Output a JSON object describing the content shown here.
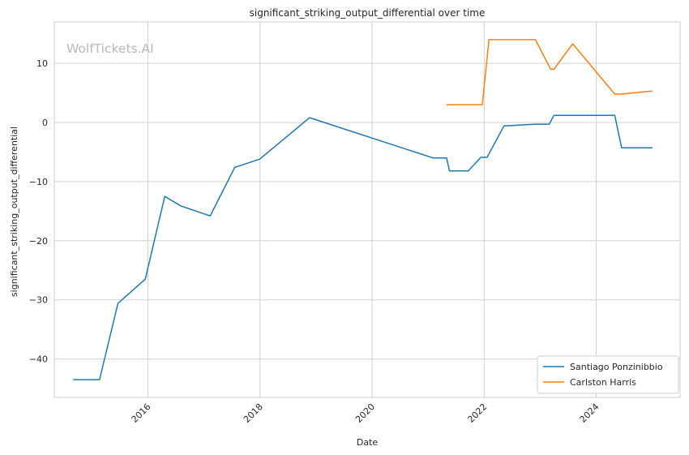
{
  "chart_data": {
    "type": "line",
    "title": "significant_striking_output_differential over time",
    "xlabel": "Date",
    "ylabel": "significant_striking_output_differential",
    "watermark": "WolfTickets.AI",
    "grid": true,
    "legend_position": "lower-right",
    "xlim": [
      "2014-05-01",
      "2025-07-01"
    ],
    "ylim": [
      -46.5,
      17
    ],
    "x_ticks": [
      "2016",
      "2018",
      "2020",
      "2022",
      "2024"
    ],
    "y_ticks": [
      -40,
      -30,
      -20,
      -10,
      0,
      10
    ],
    "y_tick_labels": [
      "−40",
      "−30",
      "−20",
      "−10",
      "0",
      "10"
    ],
    "series": [
      {
        "name": "Santiago Ponzinibbio",
        "color": "#1f77b4",
        "points": [
          {
            "x": "2014-09-01",
            "y": -43.5
          },
          {
            "x": "2015-02-20",
            "y": -43.5
          },
          {
            "x": "2015-06-20",
            "y": -30.6
          },
          {
            "x": "2015-12-15",
            "y": -26.5
          },
          {
            "x": "2016-04-20",
            "y": -12.5
          },
          {
            "x": "2016-08-01",
            "y": -14.1
          },
          {
            "x": "2017-02-10",
            "y": -15.8
          },
          {
            "x": "2017-07-20",
            "y": -7.6
          },
          {
            "x": "2017-12-30",
            "y": -6.2
          },
          {
            "x": "2018-11-20",
            "y": 0.8
          },
          {
            "x": "2021-02-01",
            "y": -6.0
          },
          {
            "x": "2021-05-01",
            "y": -6.0
          },
          {
            "x": "2021-05-20",
            "y": -8.2
          },
          {
            "x": "2021-09-20",
            "y": -8.2
          },
          {
            "x": "2021-12-10",
            "y": -5.9
          },
          {
            "x": "2022-01-20",
            "y": -5.9
          },
          {
            "x": "2022-05-10",
            "y": -0.6
          },
          {
            "x": "2022-12-01",
            "y": -0.3
          },
          {
            "x": "2023-03-01",
            "y": -0.3
          },
          {
            "x": "2023-04-01",
            "y": 1.2
          },
          {
            "x": "2024-05-01",
            "y": 1.2
          },
          {
            "x": "2024-06-15",
            "y": -4.3
          },
          {
            "x": "2025-01-01",
            "y": -4.3
          }
        ]
      },
      {
        "name": "Carlston Harris",
        "color": "#ff7f0e",
        "points": [
          {
            "x": "2021-05-01",
            "y": 3.0
          },
          {
            "x": "2021-12-20",
            "y": 3.0
          },
          {
            "x": "2022-02-01",
            "y": 14.0
          },
          {
            "x": "2022-12-01",
            "y": 14.0
          },
          {
            "x": "2023-03-10",
            "y": 9.0
          },
          {
            "x": "2023-04-01",
            "y": 9.0
          },
          {
            "x": "2023-08-01",
            "y": 13.3
          },
          {
            "x": "2024-05-01",
            "y": 4.8
          },
          {
            "x": "2024-06-15",
            "y": 4.8
          },
          {
            "x": "2025-01-01",
            "y": 5.3
          }
        ]
      }
    ]
  }
}
